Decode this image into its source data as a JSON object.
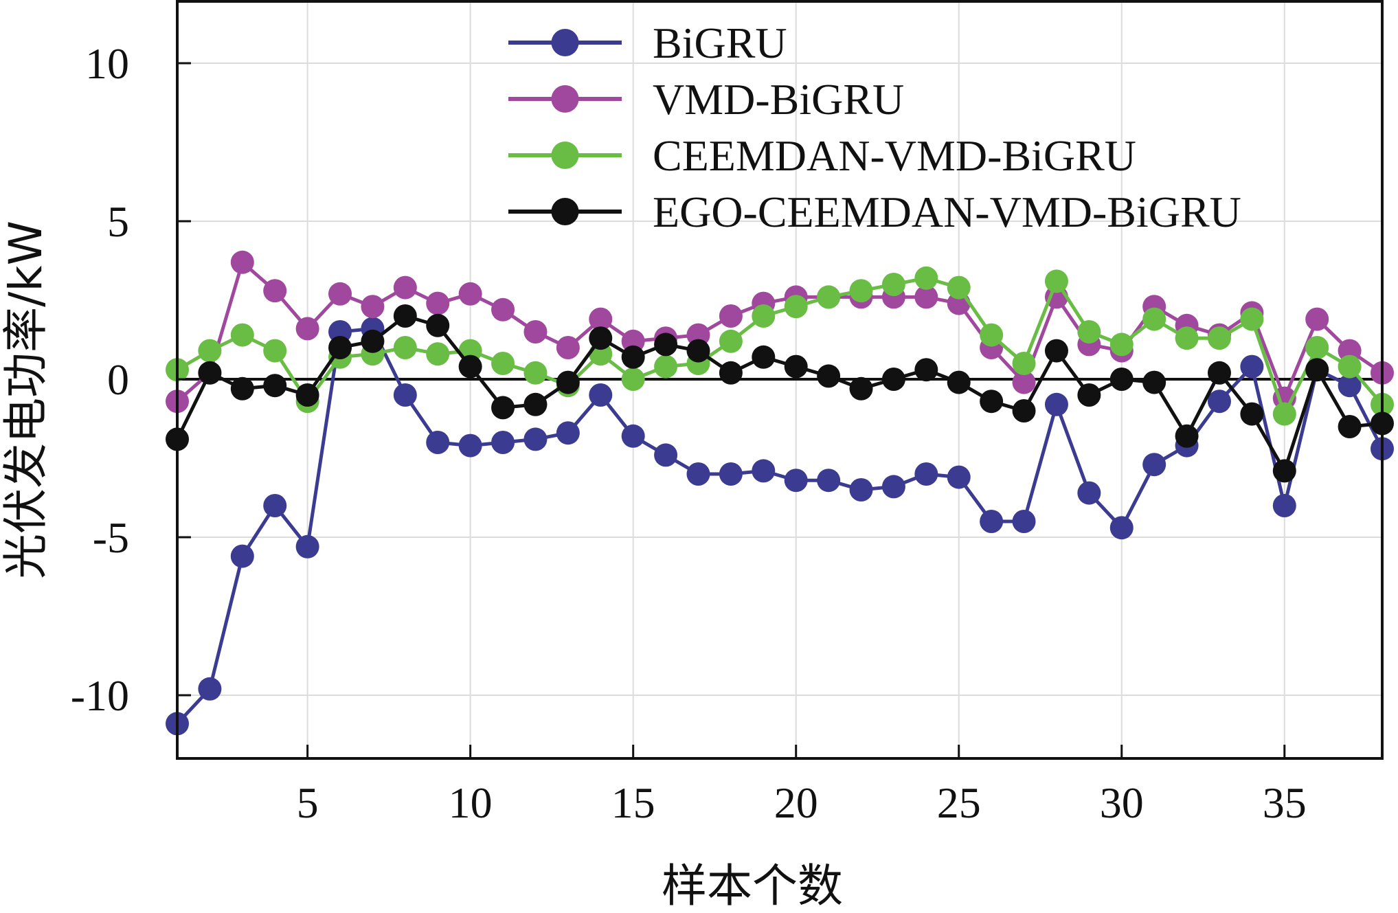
{
  "chart_data": {
    "type": "line",
    "title": "",
    "xlabel": "样本个数",
    "ylabel": "光伏发电功率/kW",
    "xlim": [
      1,
      38
    ],
    "ylim": [
      -12,
      12
    ],
    "xticks": [
      5,
      10,
      15,
      20,
      25,
      30,
      35
    ],
    "yticks": [
      10,
      5,
      0,
      -5,
      -10
    ],
    "ytick_labels": [
      "10",
      "5",
      "0",
      "-5",
      "-10"
    ],
    "grid": true,
    "legend_position": "top-right",
    "x": [
      1,
      2,
      3,
      4,
      5,
      6,
      7,
      8,
      9,
      10,
      11,
      12,
      13,
      14,
      15,
      16,
      17,
      18,
      19,
      20,
      21,
      22,
      23,
      24,
      25,
      26,
      27,
      28,
      29,
      30,
      31,
      32,
      33,
      34,
      35,
      36,
      37,
      38
    ],
    "series": [
      {
        "name": "BiGRU",
        "color": "#3b3b91",
        "values": [
          -10.9,
          -9.8,
          -5.6,
          -4.0,
          -5.3,
          1.5,
          1.6,
          -0.5,
          -2.0,
          -2.1,
          -2.0,
          -1.9,
          -1.7,
          -0.5,
          -1.8,
          -2.4,
          -3.0,
          -3.0,
          -2.9,
          -3.2,
          -3.2,
          -3.5,
          -3.4,
          -3.0,
          -3.1,
          -4.5,
          -4.5,
          -0.8,
          -3.6,
          -4.7,
          -2.7,
          -2.1,
          -0.7,
          0.4,
          -4.0,
          0.3,
          -0.2,
          -2.2
        ]
      },
      {
        "name": "VMD-BiGRU",
        "color": "#a0479e",
        "values": [
          -0.7,
          0.2,
          3.7,
          2.8,
          1.6,
          2.7,
          2.3,
          2.9,
          2.4,
          2.7,
          2.2,
          1.5,
          1.0,
          1.9,
          1.2,
          1.3,
          1.4,
          2.0,
          2.4,
          2.6,
          2.6,
          2.6,
          2.6,
          2.6,
          2.4,
          1.0,
          -0.1,
          2.6,
          1.1,
          0.9,
          2.3,
          1.7,
          1.4,
          2.1,
          -0.6,
          1.9,
          0.9,
          0.2
        ]
      },
      {
        "name": "CEEMDAN-VMD-BiGRU",
        "color": "#69bd45",
        "values": [
          0.3,
          0.9,
          1.4,
          0.9,
          -0.7,
          0.7,
          0.8,
          1.0,
          0.8,
          0.9,
          0.5,
          0.2,
          -0.2,
          0.8,
          0.0,
          0.4,
          0.5,
          1.2,
          2.0,
          2.3,
          2.6,
          2.8,
          3.0,
          3.2,
          2.9,
          1.4,
          0.5,
          3.1,
          1.5,
          1.1,
          1.9,
          1.3,
          1.3,
          1.9,
          -1.1,
          1.0,
          0.4,
          -0.8
        ]
      },
      {
        "name": "EGO-CEEMDAN-VMD-BiGRU",
        "color": "#111111",
        "values": [
          -1.9,
          0.2,
          -0.3,
          -0.2,
          -0.5,
          1.0,
          1.2,
          2.0,
          1.7,
          0.4,
          -0.9,
          -0.8,
          -0.1,
          1.3,
          0.7,
          1.1,
          0.9,
          0.2,
          0.7,
          0.4,
          0.1,
          -0.3,
          0.0,
          0.3,
          -0.1,
          -0.7,
          -1.0,
          0.9,
          -0.5,
          0.0,
          -0.1,
          -1.8,
          0.2,
          -1.1,
          -2.9,
          0.3,
          -1.5,
          -1.4
        ]
      }
    ]
  }
}
